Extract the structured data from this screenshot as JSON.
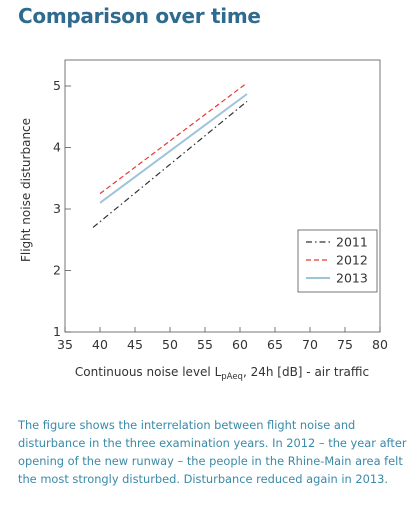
{
  "title": "Comparison over time",
  "caption": "The figure shows the interrelation between flight noise and disturbance in the three examination years. In 2012 – the year after opening of the new runway – the people in the Rhine-Main area felt the most strongly disturbed. Disturbance reduced again in 2013.",
  "chart_data": {
    "type": "line",
    "title": "",
    "xlabel": "Continuous noise level L",
    "xlabel_sub": "pAeq",
    "xlabel_suffix": ", 24h [dB] - air traffic",
    "ylabel": "Flight noise disturbance",
    "xlim": [
      35,
      80
    ],
    "ylim": [
      1,
      5
    ],
    "xticks": [
      35,
      40,
      45,
      50,
      55,
      60,
      65,
      70,
      75,
      80
    ],
    "yticks": [
      1,
      2,
      3,
      4,
      5
    ],
    "grid": false,
    "legend_position": "bottom-right",
    "series": [
      {
        "name": "2011",
        "x": [
          39,
          61
        ],
        "y": [
          2.7,
          4.75
        ],
        "color": "#333333",
        "style": "dashdot"
      },
      {
        "name": "2012",
        "x": [
          40,
          61
        ],
        "y": [
          3.25,
          5.05
        ],
        "color": "#e8382f",
        "style": "dashed"
      },
      {
        "name": "2013",
        "x": [
          40,
          61
        ],
        "y": [
          3.1,
          4.87
        ],
        "color": "#9fc3d9",
        "style": "solid"
      }
    ]
  }
}
